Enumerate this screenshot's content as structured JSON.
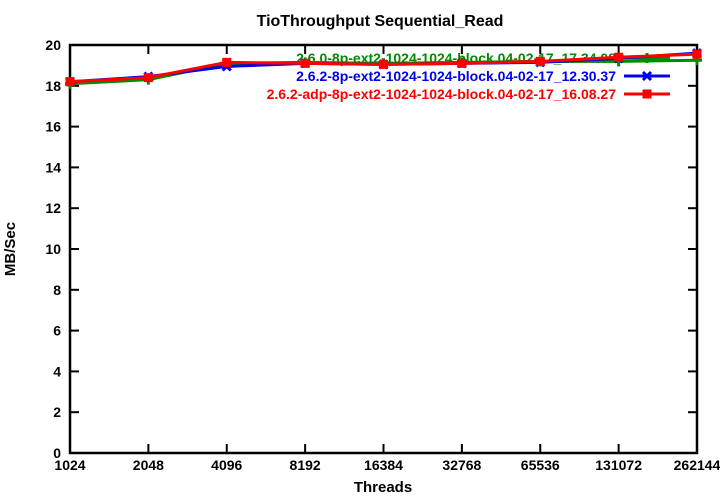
{
  "page": {
    "background": "#ffffff"
  },
  "chart_data": {
    "type": "line",
    "title": "TioThroughput Sequential_Read",
    "xlabel": "Threads",
    "ylabel": "MB/Sec",
    "x_ticks": [
      "1024",
      "2048",
      "4096",
      "8192",
      "16384",
      "32768",
      "65536",
      "131072",
      "262144"
    ],
    "y_ticks": [
      0,
      2,
      4,
      6,
      8,
      10,
      12,
      14,
      16,
      18,
      20
    ],
    "ylim": [
      0,
      20
    ],
    "x_scale": "log2-evenly-spaced",
    "grid": false,
    "legend_position": "top-right-inside",
    "axis_color": "#000000",
    "background_color": "#ffffff",
    "series": [
      {
        "name": "2.6.0-8p-ext2-1024-1024-block.04-02-17_17.34.08",
        "color": "#008c00",
        "marker": "plus",
        "values": [
          18.1,
          18.3,
          19.1,
          19.15,
          19.1,
          19.15,
          19.2,
          19.2,
          19.25
        ]
      },
      {
        "name": "2.6.2-8p-ext2-1024-1024-block.04-02-17_12.30.37",
        "color": "#0000ee",
        "marker": "x",
        "values": [
          18.2,
          18.45,
          18.95,
          19.1,
          19.05,
          19.1,
          19.15,
          19.35,
          19.6
        ]
      },
      {
        "name": "2.6.2-adp-8p-ext2-1024-1024-block.04-02-17_16.08.27",
        "color": "#ff0000",
        "marker": "square",
        "values": [
          18.2,
          18.4,
          19.15,
          19.1,
          19.05,
          19.1,
          19.2,
          19.4,
          19.55
        ]
      }
    ]
  }
}
